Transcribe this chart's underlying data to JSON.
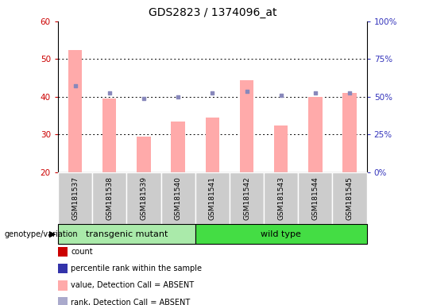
{
  "title": "GDS2823 / 1374096_at",
  "samples": [
    "GSM181537",
    "GSM181538",
    "GSM181539",
    "GSM181540",
    "GSM181541",
    "GSM181542",
    "GSM181543",
    "GSM181544",
    "GSM181545"
  ],
  "count_values": [
    52.5,
    39.5,
    29.5,
    33.5,
    34.5,
    44.5,
    32.5,
    40.0,
    41.0
  ],
  "rank_values": [
    43.0,
    41.0,
    39.5,
    40.0,
    41.0,
    41.5,
    40.5,
    41.0,
    41.0
  ],
  "bar_color": "#ffaaaa",
  "dot_color": "#8888bb",
  "ylim_left": [
    20,
    60
  ],
  "ylim_right": [
    0,
    100
  ],
  "yticks_left": [
    20,
    30,
    40,
    50,
    60
  ],
  "yticks_right": [
    0,
    25,
    50,
    75,
    100
  ],
  "ytick_labels_right": [
    "0%",
    "25%",
    "50%",
    "75%",
    "100%"
  ],
  "group1_label": "transgenic mutant",
  "group2_label": "wild type",
  "group1_indices": [
    0,
    1,
    2,
    3
  ],
  "group2_indices": [
    4,
    5,
    6,
    7,
    8
  ],
  "group_label_prefix": "genotype/variation",
  "group1_color": "#aaeaaa",
  "group2_color": "#44dd44",
  "legend_items": [
    {
      "label": "count",
      "color": "#cc0000"
    },
    {
      "label": "percentile rank within the sample",
      "color": "#3333aa"
    },
    {
      "label": "value, Detection Call = ABSENT",
      "color": "#ffaaaa"
    },
    {
      "label": "rank, Detection Call = ABSENT",
      "color": "#aaaacc"
    }
  ],
  "left_axis_color": "#cc0000",
  "right_axis_color": "#3333bb",
  "grid_color": "#000000",
  "background_xtick": "#cccccc",
  "bar_width": 0.4
}
